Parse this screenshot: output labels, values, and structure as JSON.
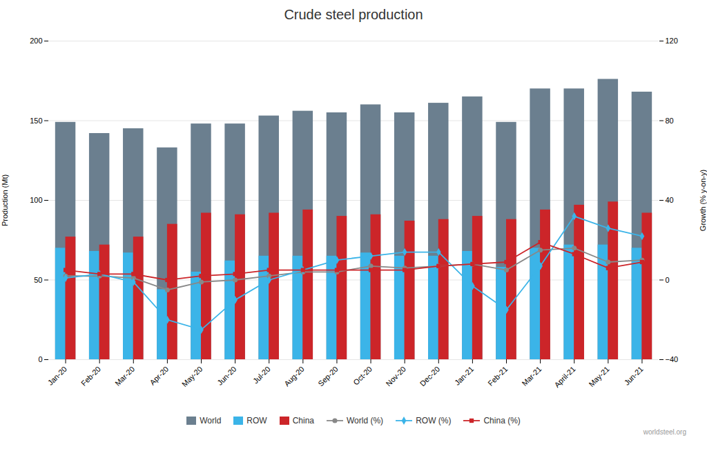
{
  "chart_data": {
    "type": "bar",
    "title": "Crude steel production",
    "categories": [
      "Jan-20",
      "Feb-20",
      "Mar-20",
      "Apr-20",
      "May-20",
      "Jun-20",
      "Jul-20",
      "Aug-20",
      "Sep-20",
      "Oct-20",
      "Nov-20",
      "Dec-20",
      "Jan-21",
      "Feb-21",
      "Mar-21",
      "April-21",
      "May-21",
      "Jun-21"
    ],
    "series": [
      {
        "name": "World",
        "type": "bar",
        "color": "#6b7f8f",
        "values": [
          149,
          142,
          145,
          133,
          148,
          148,
          153,
          156,
          155,
          160,
          155,
          161,
          165,
          149,
          170,
          170,
          176,
          168
        ]
      },
      {
        "name": "ROW",
        "type": "bar",
        "color": "#3bb4e8",
        "values": [
          70,
          68,
          67,
          44,
          55,
          62,
          65,
          65,
          65,
          67,
          65,
          65,
          68,
          58,
          70,
          72,
          72,
          70
        ]
      },
      {
        "name": "China",
        "type": "bar",
        "color": "#cc2529",
        "values": [
          77,
          72,
          77,
          85,
          92,
          91,
          92,
          94,
          90,
          91,
          87,
          88,
          90,
          88,
          94,
          97,
          99,
          92
        ]
      },
      {
        "name": "World (%)",
        "type": "line",
        "axis": "y2",
        "marker": "circle",
        "color": "#888888",
        "values": [
          2,
          2,
          1,
          -5,
          -1,
          0,
          2,
          4,
          4,
          7,
          6,
          7,
          8,
          5,
          15,
          16,
          9,
          10
        ]
      },
      {
        "name": "ROW (%)",
        "type": "line",
        "axis": "y2",
        "marker": "diamond",
        "color": "#3bb4e8",
        "values": [
          1,
          3,
          -1,
          -20,
          -25,
          -10,
          0,
          5,
          10,
          12,
          14,
          14,
          -3,
          -15,
          7,
          32,
          26,
          22
        ]
      },
      {
        "name": "China (%)",
        "type": "line",
        "axis": "y2",
        "marker": "square",
        "color": "#cc2529",
        "values": [
          5,
          3,
          3,
          0,
          2,
          3,
          5,
          5,
          5,
          5,
          5,
          7,
          8,
          9,
          19,
          13,
          6,
          9
        ]
      }
    ],
    "ylabel": "Production (Mt)",
    "y2label": "Growth (% y-on-y)",
    "ylim": [
      0,
      200
    ],
    "yticks": [
      0,
      50,
      100,
      150,
      200
    ],
    "y2lim": [
      -40,
      120
    ],
    "y2ticks": [
      -40,
      0,
      40,
      80,
      120
    ],
    "grid": true,
    "legend": "bottom",
    "annotations": [
      "worldsteel.org"
    ]
  }
}
